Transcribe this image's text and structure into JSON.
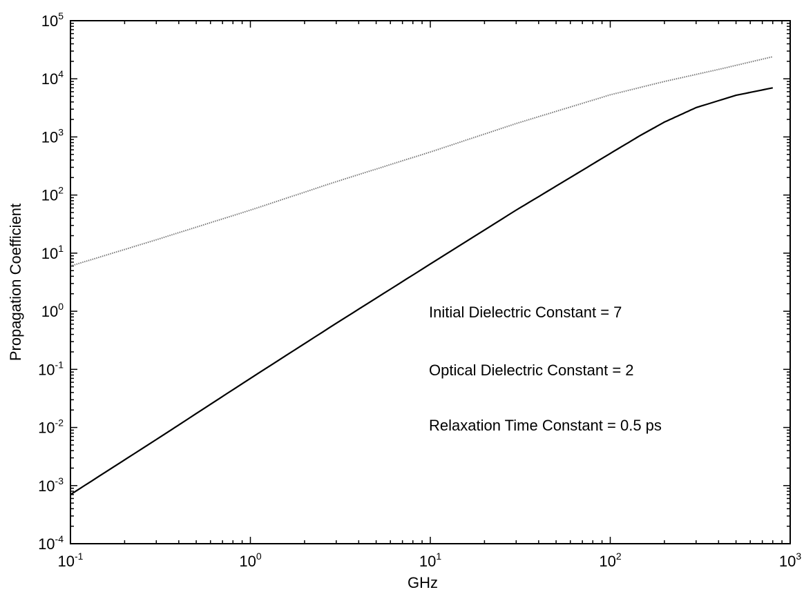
{
  "chart_data": {
    "type": "line",
    "title": "",
    "xlabel": "GHz",
    "ylabel": "Propagation Coefficient",
    "xscale": "log",
    "yscale": "log",
    "xlim": [
      0.1,
      1000
    ],
    "ylim": [
      0.0001,
      100000
    ],
    "grid": false,
    "xticks": [
      {
        "base": "10",
        "exp": "-1",
        "value": 0.1
      },
      {
        "base": "10",
        "exp": "0",
        "value": 1
      },
      {
        "base": "10",
        "exp": "1",
        "value": 10
      },
      {
        "base": "10",
        "exp": "2",
        "value": 100
      },
      {
        "base": "10",
        "exp": "3",
        "value": 1000
      }
    ],
    "yticks": [
      {
        "base": "10",
        "exp": "-4",
        "value": 0.0001
      },
      {
        "base": "10",
        "exp": "-3",
        "value": 0.001
      },
      {
        "base": "10",
        "exp": "-2",
        "value": 0.01
      },
      {
        "base": "10",
        "exp": "-1",
        "value": 0.1
      },
      {
        "base": "10",
        "exp": "0",
        "value": 1
      },
      {
        "base": "10",
        "exp": "1",
        "value": 10
      },
      {
        "base": "10",
        "exp": "2",
        "value": 100
      },
      {
        "base": "10",
        "exp": "3",
        "value": 1000
      },
      {
        "base": "10",
        "exp": "4",
        "value": 10000
      },
      {
        "base": "10",
        "exp": "5",
        "value": 100000
      }
    ],
    "series": [
      {
        "color": "#777777",
        "style": "dotted",
        "x": [
          0.1,
          0.3,
          1,
          3,
          10,
          30,
          100,
          200,
          400,
          800
        ],
        "y": [
          6,
          17,
          55,
          170,
          550,
          1700,
          5300,
          9000,
          14500,
          24000
        ]
      },
      {
        "color": "#000000",
        "style": "solid",
        "x": [
          0.1,
          0.3,
          1,
          3,
          10,
          30,
          60,
          100,
          150,
          200,
          300,
          500,
          800
        ],
        "y": [
          0.0007,
          0.0062,
          0.07,
          0.62,
          6.5,
          55,
          200,
          520,
          1100,
          1800,
          3200,
          5200,
          7000
        ]
      }
    ],
    "annotations": [
      "Initial Dielectric Constant = 7",
      "Optical Dielectric Constant = 2",
      "Relaxation Time Constant = 0.5 ps"
    ]
  }
}
